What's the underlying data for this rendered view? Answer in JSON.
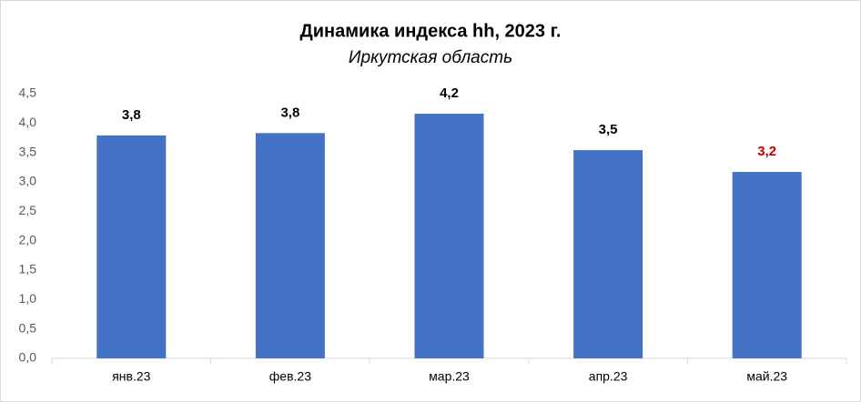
{
  "chart_data": {
    "type": "bar",
    "title": "Динамика индекса hh, 2023 г.",
    "subtitle": "Иркутская область",
    "categories": [
      "янв.23",
      "фев.23",
      "мар.23",
      "апр.23",
      "май.23"
    ],
    "values": [
      3.79,
      3.83,
      4.16,
      3.54,
      3.17
    ],
    "value_labels": [
      "3,8",
      "3,8",
      "4,2",
      "3,5",
      "3,2"
    ],
    "value_label_colors": [
      "#000000",
      "#000000",
      "#000000",
      "#000000",
      "#c00000"
    ],
    "color": "#4472c4",
    "ylim": [
      0,
      4.5
    ],
    "yticks": [
      {
        "value": 0,
        "label": "0,0"
      },
      {
        "value": 0.5,
        "label": "0,5"
      },
      {
        "value": 1,
        "label": "1,0"
      },
      {
        "value": 1.5,
        "label": "1,5"
      },
      {
        "value": 2,
        "label": "2,0"
      },
      {
        "value": 2.5,
        "label": "2,5"
      },
      {
        "value": 3,
        "label": "3,0"
      },
      {
        "value": 3.5,
        "label": "3,5"
      },
      {
        "value": 4,
        "label": "4,0"
      },
      {
        "value": 4.5,
        "label": "4,5"
      }
    ],
    "grid": false
  }
}
